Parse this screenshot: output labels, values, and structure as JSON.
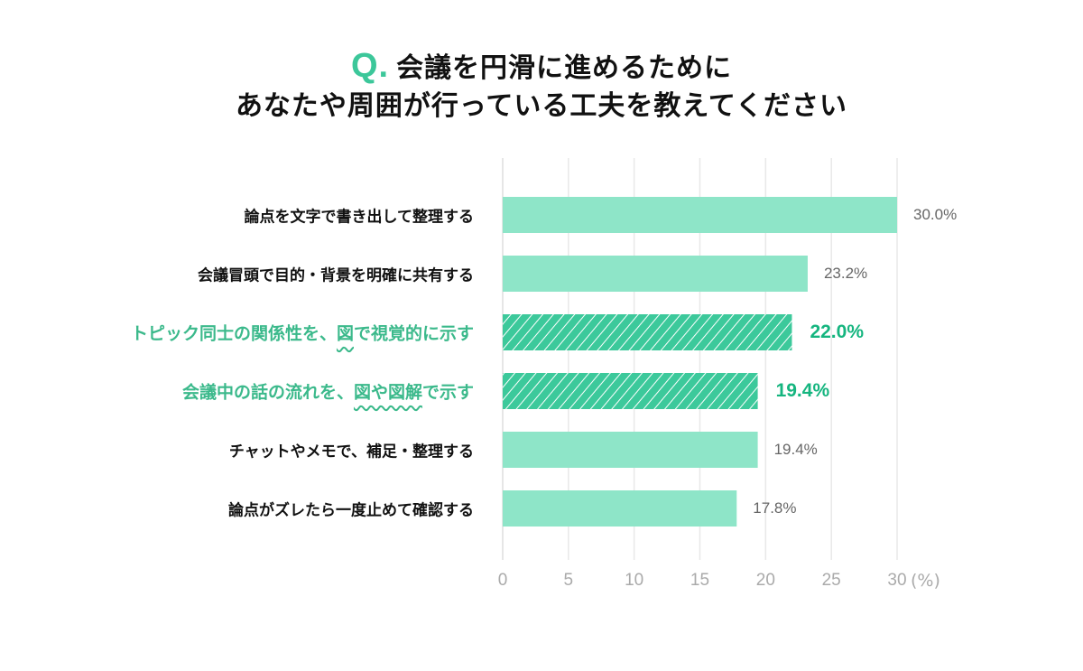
{
  "chart_data": {
    "type": "bar",
    "orientation": "horizontal",
    "title_prefix": "Q.",
    "title_line1": "会議を円滑に進めるために",
    "title_line2": "あなたや周囲が行っている工夫を教えてください",
    "categories": [
      {
        "pre": "論点を文字で書き出して整理する",
        "emph": "",
        "post": "",
        "highlight": false
      },
      {
        "pre": "会議冒頭で目的・背景を明確に共有する",
        "emph": "",
        "post": "",
        "highlight": false
      },
      {
        "pre": "トピック同士の関係性を、",
        "emph": "図",
        "post": "で視覚的に示す",
        "highlight": true
      },
      {
        "pre": "会議中の話の流れを、",
        "emph": "図や図解",
        "post": "で示す",
        "highlight": true
      },
      {
        "pre": "チャットやメモで、補足・整理する",
        "emph": "",
        "post": "",
        "highlight": false
      },
      {
        "pre": "論点がズレたら一度止めて確認する",
        "emph": "",
        "post": "",
        "highlight": false
      }
    ],
    "values": [
      30.0,
      23.2,
      22.0,
      19.4,
      19.4,
      17.8
    ],
    "value_labels": [
      "30.0%",
      "23.2%",
      "22.0%",
      "19.4%",
      "19.4%",
      "17.8%"
    ],
    "xlim": [
      0,
      30
    ],
    "xticks": [
      "0",
      "5",
      "10",
      "15",
      "20",
      "25",
      "30"
    ],
    "xunit": "(%)",
    "grid": true,
    "colors": {
      "bar": "#8ee5c8",
      "highlight_bar": "#3cc99b",
      "highlight_text": "#3bb98b",
      "accent": "#3cc79a"
    }
  }
}
